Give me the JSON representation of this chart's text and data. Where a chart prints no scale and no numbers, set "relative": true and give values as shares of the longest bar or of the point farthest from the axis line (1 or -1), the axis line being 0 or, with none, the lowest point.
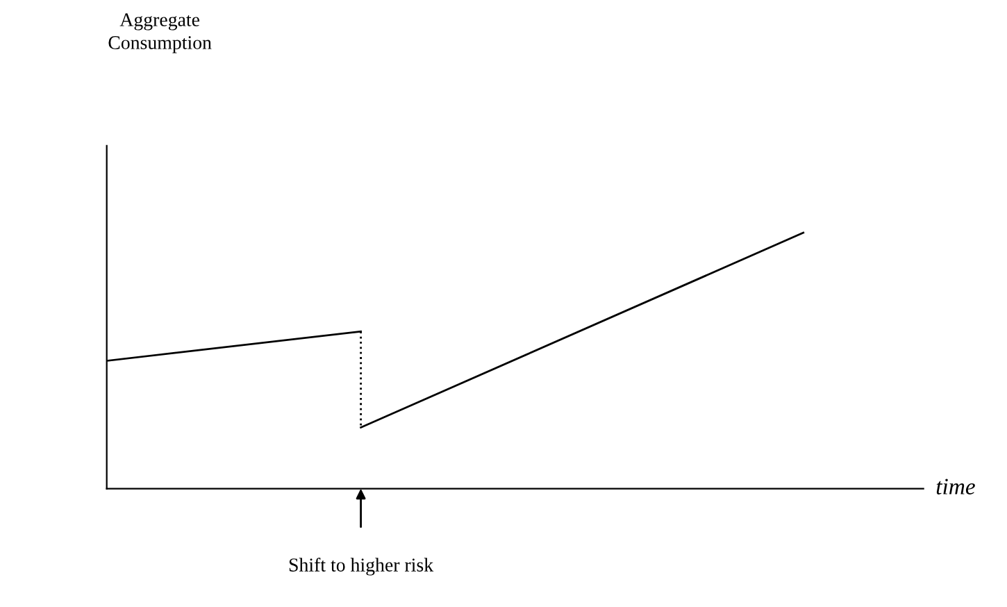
{
  "chart_data": {
    "type": "line",
    "relative": true,
    "xlabel": "time",
    "categories": [
      null,
      null,
      null,
      null,
      null,
      null,
      null,
      null,
      null,
      null,
      null,
      null
    ],
    "series": [
      {
        "color": "#000000",
        "values": [
          0.5,
          null,
          null,
          null,
          0.614,
          null,
          null,
          null,
          null,
          null,
          null,
          null
        ]
      },
      {
        "color": "#000000",
        "values": [
          null,
          null,
          null,
          null,
          0.239,
          null,
          null,
          null,
          null,
          null,
          null,
          1.0
        ]
      }
    ],
    "annotations": [
      "Aggregate\nConsumption",
      "Shift to higher risk"
    ],
    "legend": false,
    "marker": "none"
  }
}
